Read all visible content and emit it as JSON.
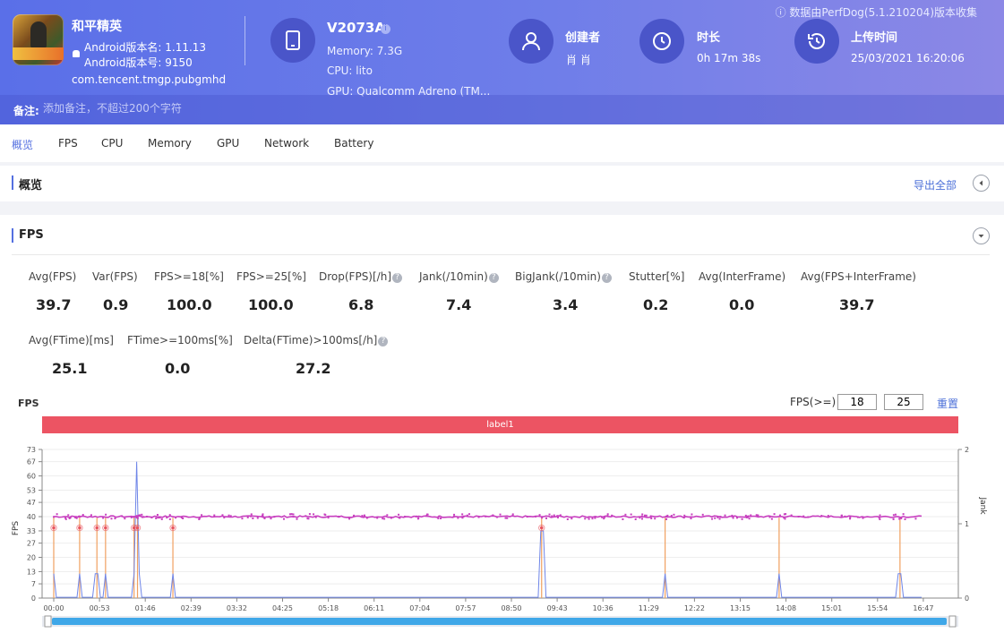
{
  "header": {
    "notice": "ⓘ 数据由PerfDog(5.1.210204)版本收集",
    "app": {
      "name": "和平精英",
      "version_name": "Android版本名: 1.11.13",
      "version_code": "Android版本号: 9150",
      "package": "com.tencent.tmgp.pubgmhd",
      "icon": "game-app-icon"
    },
    "device": {
      "name": "V2073A",
      "memory": "Memory: 7.3G",
      "cpu": "CPU: lito",
      "gpu": "GPU: Qualcomm Adreno (TM...",
      "icon": "tablet-icon"
    },
    "creator": {
      "label": "创建者",
      "value": "肖 肖",
      "icon": "user-icon"
    },
    "duration": {
      "label": "时长",
      "value": "0h 17m 38s",
      "icon": "clock-icon"
    },
    "upload": {
      "label": "上传时间",
      "value": "25/03/2021 16:20:06",
      "icon": "history-icon"
    },
    "remark": {
      "label": "备注:",
      "placeholder": "添加备注，不超过200个字符"
    }
  },
  "tabs": [
    "概览",
    "FPS",
    "CPU",
    "Memory",
    "GPU",
    "Network",
    "Battery"
  ],
  "active_tab": 0,
  "overview": {
    "title": "概览",
    "export_label": "导出全部"
  },
  "fps": {
    "title": "FPS",
    "stats_row1": [
      {
        "label": "Avg(FPS)",
        "value": "39.7"
      },
      {
        "label": "Var(FPS)",
        "value": "0.9"
      },
      {
        "label": "FPS>=18[%]",
        "value": "100.0"
      },
      {
        "label": "FPS>=25[%]",
        "value": "100.0"
      },
      {
        "label": "Drop(FPS)[/h]",
        "value": "6.8",
        "help": true
      },
      {
        "label": "Jank(/10min)",
        "value": "7.4",
        "help": true
      },
      {
        "label": "BigJank(/10min)",
        "value": "3.4",
        "help": true
      },
      {
        "label": "Stutter[%]",
        "value": "0.2"
      },
      {
        "label": "Avg(InterFrame)",
        "value": "0.0"
      },
      {
        "label": "Avg(FPS+InterFrame)",
        "value": "39.7"
      }
    ],
    "stats_row2": [
      {
        "label": "Avg(FTime)[ms]",
        "value": "25.1"
      },
      {
        "label": "FTime>=100ms[%]",
        "value": "0.0"
      },
      {
        "label": "Delta(FTime)>100ms[/h]",
        "value": "27.2",
        "help": true
      }
    ],
    "help_glyph": "?",
    "chart_title": "FPS",
    "filter_label": "FPS(>=)",
    "filter_values": [
      "18",
      "25"
    ],
    "reset_label": "重置",
    "label_band": "label1"
  },
  "chart_data": {
    "type": "line",
    "ylabel": "FPS",
    "y2label": "Jank",
    "yticks": [
      "0",
      "7",
      "13",
      "20",
      "27",
      "33",
      "40",
      "47",
      "53",
      "60",
      "67",
      "73"
    ],
    "y2ticks": [
      "0",
      "1",
      "2"
    ],
    "ylim": [
      0,
      73
    ],
    "y2lim": [
      0,
      2
    ],
    "xticks": [
      "00:00",
      "00:53",
      "01:46",
      "02:39",
      "03:32",
      "04:25",
      "05:18",
      "06:11",
      "07:04",
      "07:57",
      "08:50",
      "09:43",
      "10:36",
      "11:29",
      "12:22",
      "13:15",
      "14:08",
      "15:01",
      "15:54",
      "16:47"
    ],
    "series": [
      {
        "name": "FPS",
        "baseline": 40,
        "color": "#c73fbf"
      }
    ],
    "jank_markers_sec": [
      0,
      30,
      50,
      60,
      93,
      97,
      138,
      565
    ],
    "jank_dips_sec": [
      0,
      30,
      50,
      60,
      93,
      97,
      138,
      565,
      708,
      840,
      980
    ],
    "spike": {
      "at_sec": 97,
      "value": 67
    },
    "colors": {
      "fps": "#c73fbf",
      "jank": "#f0a060",
      "bigjank": "#6f86e8",
      "marker": "#e8545f"
    }
  },
  "scrollbar": {
    "label": "time-range-slider"
  }
}
